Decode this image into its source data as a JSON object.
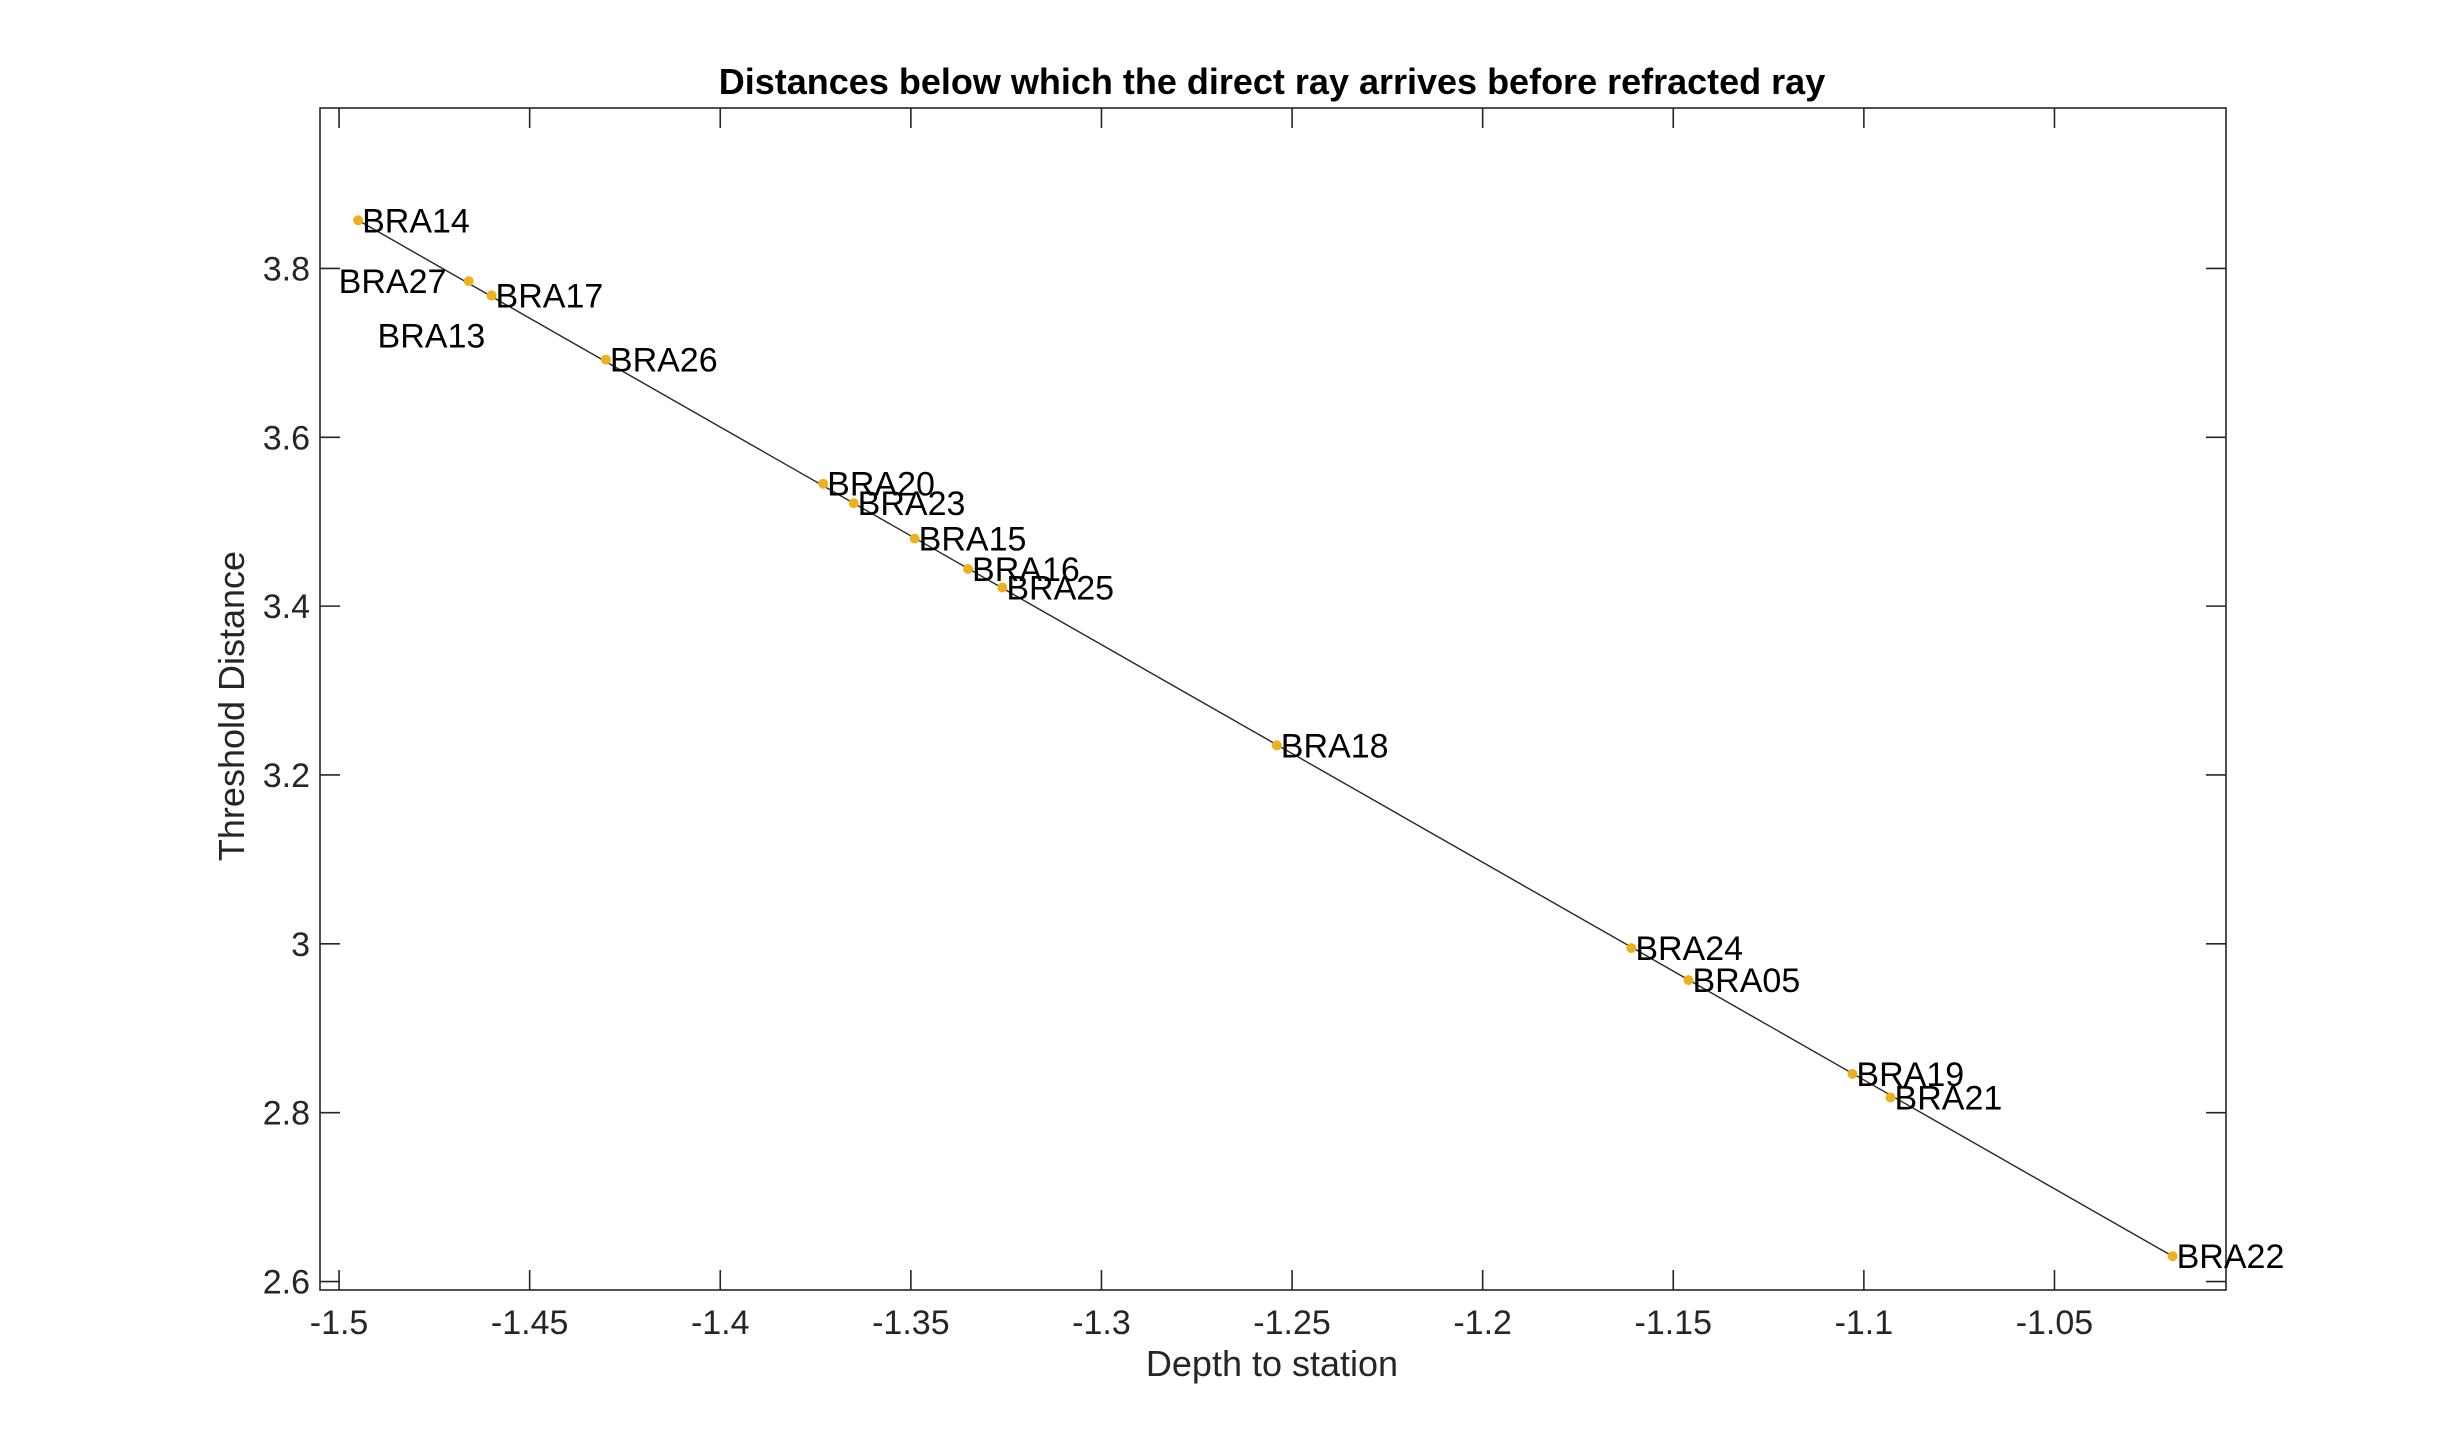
{
  "chart_data": {
    "type": "scatter",
    "title": "Distances below which the direct ray arrives before refracted ray",
    "xlabel": "Depth to station",
    "ylabel": "Threshold Distance",
    "xlim": [
      -1.505,
      -1.005
    ],
    "ylim": [
      2.59,
      3.99
    ],
    "xticks": [
      -1.5,
      -1.45,
      -1.4,
      -1.35,
      -1.3,
      -1.25,
      -1.2,
      -1.15,
      -1.1,
      -1.05
    ],
    "xtick_labels": [
      "-1.5",
      "-1.45",
      "-1.4",
      "-1.35",
      "-1.3",
      "-1.25",
      "-1.2",
      "-1.15",
      "-1.1",
      "-1.05"
    ],
    "yticks": [
      2.6,
      2.8,
      3.0,
      3.2,
      3.4,
      3.6,
      3.8
    ],
    "ytick_labels": [
      "2.6",
      "2.8",
      "3",
      "3.2",
      "3.4",
      "3.6",
      "3.8"
    ],
    "grid": false,
    "colors": {
      "marker": "#EDB120",
      "line": "#262626",
      "axes": "#262626"
    },
    "series": [
      {
        "points": [
          {
            "label": "BRA14",
            "x": -1.495,
            "y": 3.857
          },
          {
            "label": "BRA27",
            "x": -1.466,
            "y": 3.785
          },
          {
            "label": "BRA17",
            "x": -1.46,
            "y": 3.768
          },
          {
            "label": "BRA13",
            "x": -1.46,
            "y": 3.768
          },
          {
            "label": "BRA26",
            "x": -1.43,
            "y": 3.692
          },
          {
            "label": "BRA20",
            "x": -1.373,
            "y": 3.545
          },
          {
            "label": "BRA23",
            "x": -1.365,
            "y": 3.522
          },
          {
            "label": "BRA15",
            "x": -1.349,
            "y": 3.48
          },
          {
            "label": "BRA16",
            "x": -1.335,
            "y": 3.444
          },
          {
            "label": "BRA25",
            "x": -1.326,
            "y": 3.422
          },
          {
            "label": "BRA18",
            "x": -1.254,
            "y": 3.235
          },
          {
            "label": "BRA24",
            "x": -1.161,
            "y": 2.995
          },
          {
            "label": "BRA05",
            "x": -1.146,
            "y": 2.957
          },
          {
            "label": "BRA19",
            "x": -1.103,
            "y": 2.846
          },
          {
            "label": "BRA21",
            "x": -1.093,
            "y": 2.818
          },
          {
            "label": "BRA22",
            "x": -1.019,
            "y": 2.63
          }
        ]
      }
    ],
    "fit_line": {
      "x": [
        -1.495,
        -1.019
      ],
      "y": [
        3.857,
        2.63
      ]
    }
  }
}
